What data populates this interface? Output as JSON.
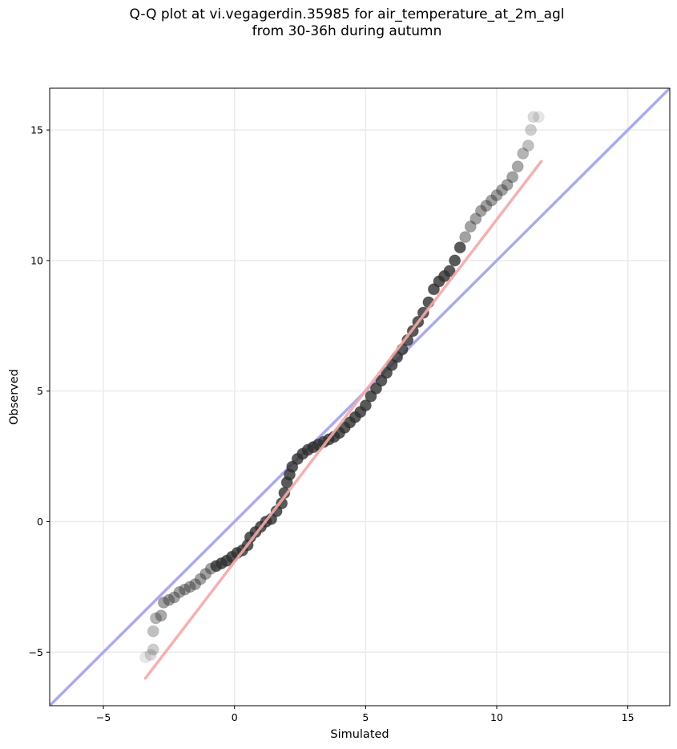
{
  "chart_data": {
    "type": "scatter",
    "title_lines": [
      "Q-Q plot at vi.vegagerdin.35985 for air_temperature_at_2m_agl",
      "from 30-36h during autumn"
    ],
    "xlabel": "Simulated",
    "ylabel": "Observed",
    "xlim": [
      -7.05,
      16.6
    ],
    "ylim": [
      -7.05,
      16.6
    ],
    "xticks": [
      -5,
      0,
      5,
      10,
      15
    ],
    "yticks": [
      -5,
      0,
      5,
      10,
      15
    ],
    "xtick_labels": [
      "−5",
      "0",
      "5",
      "10",
      "15"
    ],
    "ytick_labels": [
      "−5",
      "0",
      "5",
      "10",
      "15"
    ],
    "grid": true,
    "identity_line": {
      "color": "#aaaaee",
      "from": [
        -7.05,
        -7.05
      ],
      "to": [
        16.6,
        16.6
      ]
    },
    "fit_line": {
      "color": "#f4a8a8",
      "from": [
        -3.4,
        -6.0
      ],
      "to": [
        11.7,
        13.8
      ]
    },
    "points": [
      [
        -3.4,
        -5.2
      ],
      [
        -3.2,
        -5.1
      ],
      [
        -3.1,
        -4.9
      ],
      [
        -3.1,
        -4.2
      ],
      [
        -3.0,
        -3.7
      ],
      [
        -2.8,
        -3.6
      ],
      [
        -2.7,
        -3.1
      ],
      [
        -2.5,
        -3.0
      ],
      [
        -2.3,
        -2.9
      ],
      [
        -2.1,
        -2.7
      ],
      [
        -1.9,
        -2.6
      ],
      [
        -1.7,
        -2.5
      ],
      [
        -1.5,
        -2.4
      ],
      [
        -1.3,
        -2.2
      ],
      [
        -1.1,
        -2.0
      ],
      [
        -0.9,
        -1.8
      ],
      [
        -0.7,
        -1.7
      ],
      [
        -0.5,
        -1.6
      ],
      [
        -0.3,
        -1.5
      ],
      [
        -0.1,
        -1.35
      ],
      [
        0.1,
        -1.2
      ],
      [
        0.3,
        -1.1
      ],
      [
        0.5,
        -0.9
      ],
      [
        0.6,
        -0.6
      ],
      [
        0.8,
        -0.4
      ],
      [
        1.0,
        -0.2
      ],
      [
        1.2,
        0.0
      ],
      [
        1.4,
        0.1
      ],
      [
        1.6,
        0.4
      ],
      [
        1.8,
        0.7
      ],
      [
        1.9,
        1.1
      ],
      [
        2.0,
        1.5
      ],
      [
        2.1,
        1.8
      ],
      [
        2.2,
        2.1
      ],
      [
        2.4,
        2.4
      ],
      [
        2.6,
        2.6
      ],
      [
        2.8,
        2.75
      ],
      [
        3.0,
        2.85
      ],
      [
        3.2,
        2.95
      ],
      [
        3.4,
        3.05
      ],
      [
        3.6,
        3.15
      ],
      [
        3.8,
        3.25
      ],
      [
        4.0,
        3.4
      ],
      [
        4.2,
        3.6
      ],
      [
        4.4,
        3.8
      ],
      [
        4.6,
        4.0
      ],
      [
        4.8,
        4.2
      ],
      [
        5.0,
        4.45
      ],
      [
        5.2,
        4.8
      ],
      [
        5.4,
        5.1
      ],
      [
        5.6,
        5.4
      ],
      [
        5.8,
        5.7
      ],
      [
        6.0,
        6.0
      ],
      [
        6.2,
        6.3
      ],
      [
        6.4,
        6.6
      ],
      [
        6.6,
        6.95
      ],
      [
        6.8,
        7.3
      ],
      [
        7.0,
        7.65
      ],
      [
        7.2,
        8.0
      ],
      [
        7.4,
        8.4
      ],
      [
        7.6,
        8.9
      ],
      [
        7.8,
        9.2
      ],
      [
        8.0,
        9.4
      ],
      [
        8.2,
        9.6
      ],
      [
        8.4,
        10.0
      ],
      [
        8.6,
        10.5
      ],
      [
        8.8,
        10.9
      ],
      [
        9.0,
        11.3
      ],
      [
        9.2,
        11.6
      ],
      [
        9.4,
        11.9
      ],
      [
        9.6,
        12.1
      ],
      [
        9.8,
        12.3
      ],
      [
        10.0,
        12.5
      ],
      [
        10.2,
        12.7
      ],
      [
        10.4,
        12.9
      ],
      [
        10.6,
        13.2
      ],
      [
        10.8,
        13.6
      ],
      [
        11.0,
        14.1
      ],
      [
        11.2,
        14.4
      ],
      [
        11.3,
        15.0
      ],
      [
        11.4,
        15.5
      ],
      [
        11.6,
        15.5
      ]
    ]
  }
}
